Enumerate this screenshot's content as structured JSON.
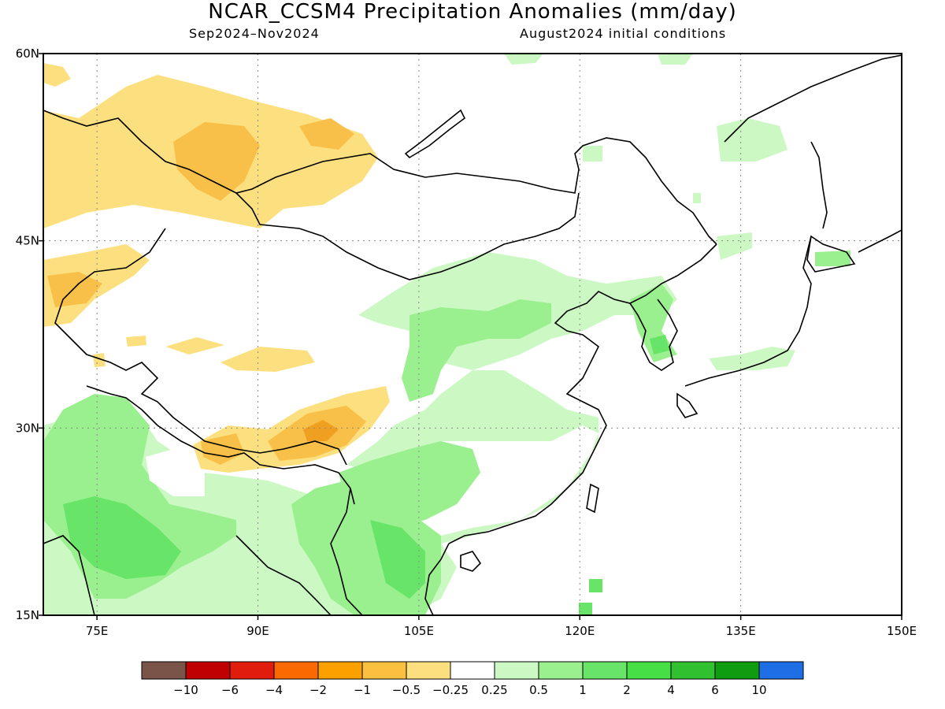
{
  "title": "NCAR_CCSM4 Precipitation Anomalies (mm/day)",
  "subtitle_left": "Sep2024–Nov2024",
  "subtitle_right": "August2024 initial conditions",
  "map": {
    "lon_range": [
      70,
      150
    ],
    "lat_range": [
      15,
      60
    ],
    "lat_ticks": [
      {
        "value": 60,
        "label": "60N"
      },
      {
        "value": 45,
        "label": "45N"
      },
      {
        "value": 30,
        "label": "30N"
      },
      {
        "value": 15,
        "label": "15N"
      }
    ],
    "lon_ticks": [
      {
        "value": 75,
        "label": "75E"
      },
      {
        "value": 90,
        "label": "90E"
      },
      {
        "value": 105,
        "label": "105E"
      },
      {
        "value": 120,
        "label": "120E"
      },
      {
        "value": 135,
        "label": "135E"
      },
      {
        "value": 150,
        "label": "150E"
      }
    ],
    "grid": true,
    "colors": {
      "wet_light": "#ccf8c4",
      "wet_mid": "#9af08e",
      "wet_strong": "#68e468",
      "dry_light": "#fce080",
      "dry_mid": "#f8c048",
      "dry_strong": "#f0a020"
    }
  },
  "colorbar": {
    "colors": [
      "#7a5448",
      "#c00000",
      "#e01c0c",
      "#fa6a00",
      "#fca000",
      "#fcc040",
      "#fce080",
      "#ffffff",
      "#ccf8c4",
      "#9af08e",
      "#68e468",
      "#46e046",
      "#30c030",
      "#109c10",
      "#1e6ee6"
    ],
    "labels": [
      "−10",
      "−6",
      "−4",
      "−2",
      "−1",
      "−0.5",
      "−0.25",
      "0.25",
      "0.5",
      "1",
      "2",
      "4",
      "6",
      "10"
    ]
  }
}
